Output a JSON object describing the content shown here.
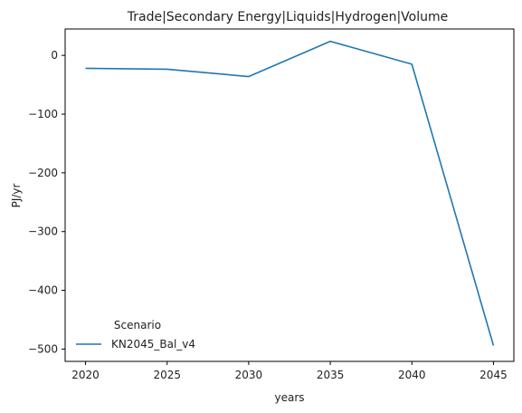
{
  "chart_data": {
    "type": "line",
    "title": "Trade|Secondary Energy|Liquids|Hydrogen|Volume",
    "xlabel": "years",
    "ylabel": "PJ/yr",
    "x": [
      2020,
      2025,
      2030,
      2035,
      2040,
      2045
    ],
    "xticks": [
      2020,
      2025,
      2030,
      2035,
      2040,
      2045
    ],
    "yticks": [
      0,
      -100,
      -200,
      -300,
      -400,
      -500
    ],
    "ytick_labels": [
      "0",
      "−100",
      "−200",
      "−300",
      "−400",
      "−500"
    ],
    "xlim": [
      2018.75,
      2046.25
    ],
    "ylim": [
      -521,
      45
    ],
    "grid": false,
    "legend": {
      "title": "Scenario",
      "placement": "lower-left"
    },
    "series": [
      {
        "name": "KN2045_Bal_v4",
        "color": "#1f77b4",
        "values": [
          -22,
          -23.5,
          -36,
          24,
          -15,
          -494
        ]
      }
    ]
  }
}
